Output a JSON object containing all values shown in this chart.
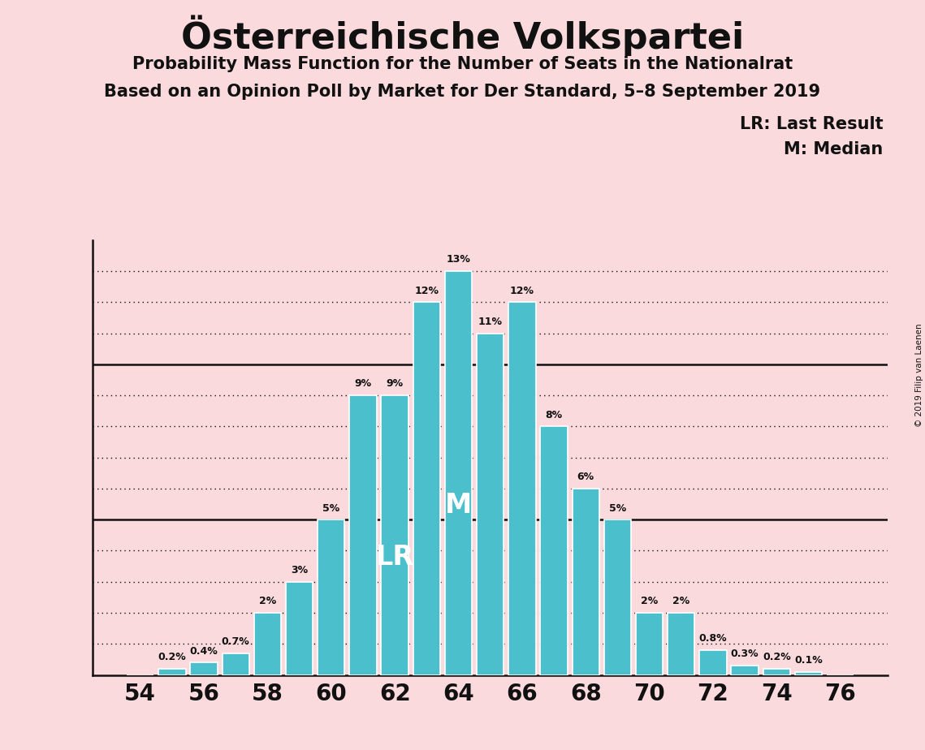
{
  "title": "Österreichische Volkspartei",
  "subtitle1": "Probability Mass Function for the Number of Seats in the Nationalrat",
  "subtitle2": "Based on an Opinion Poll by Market for Der Standard, 5–8 September 2019",
  "watermark": "© 2019 Filip van Laenen",
  "legend_lr": "LR: Last Result",
  "legend_m": "M: Median",
  "seats": [
    54,
    55,
    56,
    57,
    58,
    59,
    60,
    61,
    62,
    63,
    64,
    65,
    66,
    67,
    68,
    69,
    70,
    71,
    72,
    73,
    74,
    75,
    76
  ],
  "probabilities": [
    0.0,
    0.2,
    0.4,
    0.7,
    2.0,
    3.0,
    5.0,
    9.0,
    9.0,
    12.0,
    13.0,
    11.0,
    12.0,
    8.0,
    6.0,
    5.0,
    2.0,
    2.0,
    0.8,
    0.3,
    0.2,
    0.1,
    0.0
  ],
  "bar_color": "#4bbfcc",
  "bar_edgecolor": "white",
  "background_color": "#fadadd",
  "text_color": "#111111",
  "lr_seat": 62,
  "median_seat": 64,
  "ylim_max": 14,
  "solid_yticks": [
    5,
    10
  ],
  "dotted_yticks": [
    1,
    2,
    3,
    4,
    6,
    7,
    8,
    9,
    11,
    12,
    13
  ],
  "ylabel_values": [
    5,
    10
  ],
  "xtick_positions": [
    54,
    56,
    58,
    60,
    62,
    64,
    66,
    68,
    70,
    72,
    74,
    76
  ]
}
